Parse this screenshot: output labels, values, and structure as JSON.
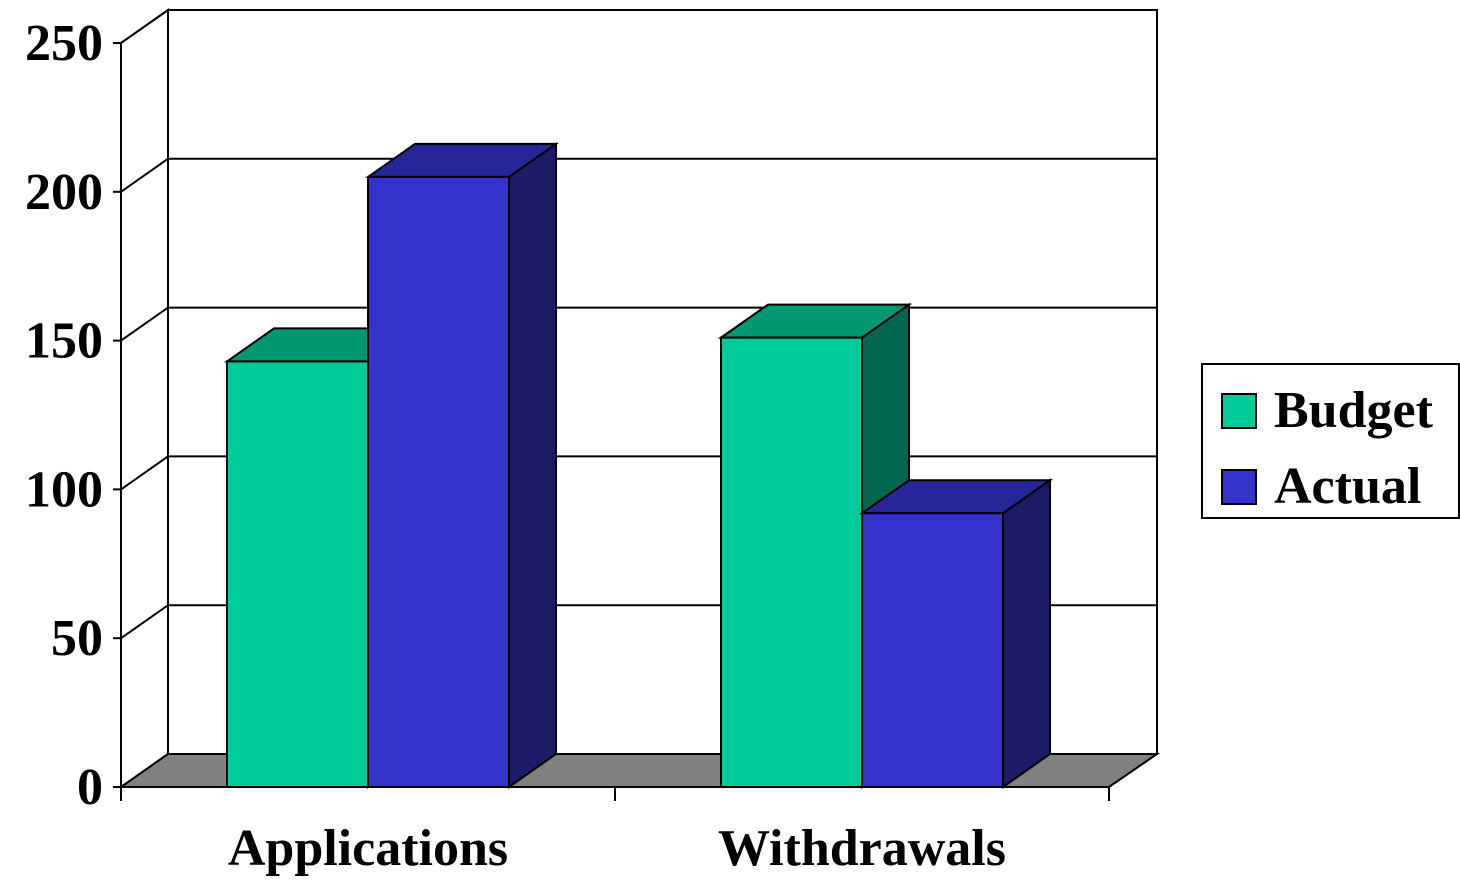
{
  "colors": {
    "budget_front": "#00CC99",
    "budget_top": "#009870",
    "budget_side": "#006650",
    "actual_front": "#3333CC",
    "actual_top": "#262699",
    "actual_side": "#1C1C66",
    "floor": "#808080",
    "gridline": "#000000",
    "background": "#FFFFFF"
  },
  "chart_data": {
    "type": "bar",
    "title": "",
    "xlabel": "",
    "ylabel": "",
    "categories": [
      "Applications",
      "Withdrawals"
    ],
    "series": [
      {
        "name": "Budget",
        "values": [
          143,
          151
        ],
        "color_key": "budget"
      },
      {
        "name": "Actual",
        "values": [
          205,
          92
        ],
        "color_key": "actual"
      }
    ],
    "ylim": [
      0,
      250
    ],
    "y_ticks": [
      0,
      50,
      100,
      150,
      200,
      250
    ],
    "y_tick_labels": [
      "0",
      "50",
      "100",
      "150",
      "200",
      "250"
    ],
    "grid": true,
    "legend_position": "right",
    "style": "3d-clustered-column"
  }
}
